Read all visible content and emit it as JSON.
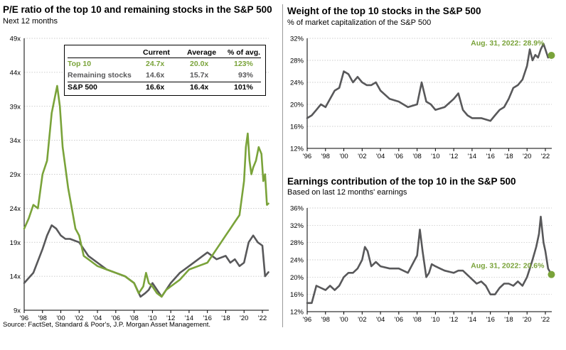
{
  "source": "Source: FactSet, Standard & Poor's, J.P. Morgan Asset Management.",
  "colors": {
    "green": "#7aa33a",
    "gray": "#58585a",
    "grid": "#bdbdbd",
    "axis": "#000000"
  },
  "chart_data": [
    {
      "type": "line",
      "title": "P/E ratio of the top 10 and remaining stocks in the S&P 500",
      "subtitle": "Next 12 months",
      "ylim": [
        9,
        49
      ],
      "yticks": [
        9,
        14,
        19,
        24,
        29,
        34,
        39,
        44,
        49
      ],
      "ytick_labels": [
        "9x",
        "14x",
        "19x",
        "24x",
        "29x",
        "34x",
        "39x",
        "44x",
        "49x"
      ],
      "xlim": [
        1996,
        2022.7
      ],
      "xticks": [
        1996,
        1998,
        2000,
        2002,
        2004,
        2006,
        2008,
        2010,
        2012,
        2014,
        2016,
        2018,
        2020,
        2022
      ],
      "xtick_labels": [
        "'96",
        "'98",
        "'00",
        "'02",
        "'04",
        "'06",
        "'08",
        "'10",
        "'12",
        "'14",
        "'16",
        "'18",
        "'20",
        "'22"
      ],
      "series": [
        {
          "name": "Top 10",
          "color": "#7aa33a",
          "x": [
            1996,
            1996.5,
            1997,
            1997.5,
            1998,
            1998.5,
            1999,
            1999.3,
            1999.6,
            1999.9,
            2000.2,
            2000.5,
            2000.8,
            2001.2,
            2001.6,
            2002,
            2002.5,
            2003,
            2003.5,
            2004,
            2005,
            2006,
            2007,
            2007.5,
            2008,
            2008.5,
            2009,
            2009.3,
            2009.6,
            2010,
            2010.5,
            2011,
            2011.5,
            2012,
            2013,
            2014,
            2015,
            2016,
            2017,
            2017.5,
            2018,
            2018.5,
            2019,
            2019.5,
            2020,
            2020.2,
            2020.4,
            2020.6,
            2020.8,
            2021,
            2021.3,
            2021.6,
            2021.9,
            2022.1,
            2022.3,
            2022.5,
            2022.66
          ],
          "y": [
            21,
            22.5,
            24.5,
            24,
            29,
            31,
            38,
            40,
            42,
            39,
            33,
            30,
            27,
            24,
            21,
            20,
            17,
            16.5,
            16,
            15.5,
            15,
            14.5,
            14,
            13.5,
            13,
            11.5,
            12.5,
            14.5,
            13,
            12.5,
            11.5,
            11,
            12,
            12.5,
            13.5,
            15,
            15.5,
            16,
            18,
            19,
            20,
            21,
            22,
            23,
            28,
            33,
            35,
            31,
            29,
            30,
            31,
            33,
            32,
            28,
            29,
            24.5,
            24.7
          ]
        },
        {
          "name": "Remaining stocks",
          "color": "#58585a",
          "x": [
            1996,
            1997,
            1998,
            1998.5,
            1999,
            1999.5,
            2000,
            2000.5,
            2001,
            2002,
            2003,
            2004,
            2005,
            2006,
            2007,
            2008,
            2008.7,
            2009.2,
            2009.6,
            2010,
            2011,
            2012,
            2013,
            2014,
            2015,
            2016,
            2017,
            2018,
            2018.5,
            2019,
            2019.5,
            2020,
            2020.5,
            2021,
            2021.5,
            2022,
            2022.3,
            2022.66
          ],
          "y": [
            13,
            14.5,
            18,
            20,
            21.5,
            21,
            20,
            19.5,
            19.5,
            19,
            17,
            16,
            15,
            14.5,
            14,
            13,
            11,
            11.5,
            12,
            13,
            11,
            13,
            14.5,
            15.5,
            16.5,
            17.5,
            16.5,
            17,
            16,
            16.5,
            15.5,
            16,
            19,
            20,
            19,
            18.5,
            14,
            14.6
          ]
        }
      ],
      "table": {
        "headers": [
          "",
          "Current",
          "Average",
          "% of avg."
        ],
        "rows": [
          {
            "label": "Top 10",
            "current": "24.7x",
            "average": "20.0x",
            "pct": "123%",
            "color": "#7aa33a"
          },
          {
            "label": "Remaining stocks",
            "current": "14.6x",
            "average": "15.7x",
            "pct": "93%",
            "color": "#58585a"
          },
          {
            "label": "S&P 500",
            "current": "16.6x",
            "average": "16.4x",
            "pct": "101%",
            "color": "#000000"
          }
        ]
      }
    },
    {
      "type": "line",
      "title": "Weight of the top 10 stocks in the S&P 500",
      "subtitle": "% of market capitalization of the S&P 500",
      "ylim": [
        12,
        32
      ],
      "yticks": [
        12,
        16,
        20,
        24,
        28,
        32
      ],
      "ytick_labels": [
        "12%",
        "16%",
        "20%",
        "24%",
        "28%",
        "32%"
      ],
      "xlim": [
        1996,
        2022.7
      ],
      "xticks": [
        1996,
        1998,
        2000,
        2002,
        2004,
        2006,
        2008,
        2010,
        2012,
        2014,
        2016,
        2018,
        2020,
        2022
      ],
      "xtick_labels": [
        "'96",
        "'98",
        "'00",
        "'02",
        "'04",
        "'06",
        "'08",
        "'10",
        "'12",
        "'14",
        "'16",
        "'18",
        "'20",
        "'22"
      ],
      "annotation": "Aug. 31, 2022: 28.9%",
      "endpoint": {
        "x": 2022.66,
        "y": 28.9
      },
      "series": [
        {
          "name": "Top 10 weight",
          "color": "#58585a",
          "x": [
            1996,
            1996.5,
            1997,
            1997.5,
            1998,
            1998.5,
            1999,
            1999.5,
            2000,
            2000.5,
            2001,
            2001.5,
            2002,
            2002.5,
            2003,
            2003.5,
            2004,
            2005,
            2006,
            2007,
            2008,
            2008.5,
            2009,
            2009.5,
            2010,
            2011,
            2012,
            2012.5,
            2013,
            2013.5,
            2014,
            2015,
            2016,
            2016.5,
            2017,
            2017.5,
            2018,
            2018.5,
            2019,
            2019.5,
            2020,
            2020.3,
            2020.6,
            2020.9,
            2021.2,
            2021.5,
            2021.8,
            2022,
            2022.3,
            2022.66
          ],
          "y": [
            17.5,
            18,
            19,
            20,
            19.5,
            21,
            22.5,
            23,
            26,
            25.5,
            24,
            25,
            24,
            23.5,
            23.5,
            24,
            22.5,
            21,
            20.5,
            19.5,
            20,
            24,
            20.5,
            20,
            19,
            19.5,
            21,
            22,
            19,
            18,
            17.5,
            17.5,
            17,
            18,
            19,
            19.5,
            21,
            23,
            23.5,
            24.5,
            27,
            30,
            28,
            29,
            28.5,
            30,
            31,
            30,
            28.5,
            28.9
          ]
        }
      ]
    },
    {
      "type": "line",
      "title": "Earnings contribution of the top 10 in the S&P 500",
      "subtitle": "Based on last 12 months' earnings",
      "ylim": [
        12,
        36
      ],
      "yticks": [
        12,
        16,
        20,
        24,
        28,
        32,
        36
      ],
      "ytick_labels": [
        "12%",
        "16%",
        "20%",
        "24%",
        "28%",
        "32%",
        "36%"
      ],
      "xlim": [
        1996,
        2022.7
      ],
      "xticks": [
        1996,
        1998,
        2000,
        2002,
        2004,
        2006,
        2008,
        2010,
        2012,
        2014,
        2016,
        2018,
        2020,
        2022
      ],
      "xtick_labels": [
        "'96",
        "'98",
        "'00",
        "'02",
        "'04",
        "'06",
        "'08",
        "'10",
        "'12",
        "'14",
        "'16",
        "'18",
        "'20",
        "'22"
      ],
      "annotation": "Aug. 31, 2022: 20.6%",
      "endpoint": {
        "x": 2022.66,
        "y": 20.6
      },
      "series": [
        {
          "name": "Top 10 earnings contribution",
          "color": "#58585a",
          "x": [
            1996,
            1996.5,
            1997,
            1997.5,
            1998,
            1998.5,
            1999,
            1999.5,
            2000,
            2000.5,
            2001,
            2001.5,
            2002,
            2002.3,
            2002.6,
            2003,
            2003.5,
            2004,
            2005,
            2006,
            2007,
            2008,
            2008.3,
            2008.6,
            2009,
            2009.3,
            2009.6,
            2010,
            2010.5,
            2011,
            2012,
            2012.5,
            2013,
            2014,
            2014.5,
            2015,
            2015.5,
            2016,
            2016.5,
            2017,
            2017.5,
            2018,
            2018.5,
            2019,
            2019.5,
            2020,
            2020.3,
            2020.6,
            2021,
            2021.3,
            2021.5,
            2021.8,
            2022,
            2022.3,
            2022.66
          ],
          "y": [
            14,
            14,
            18,
            17.5,
            17,
            18,
            17,
            18,
            20,
            21,
            21,
            22,
            24,
            27,
            26,
            22.5,
            23.5,
            22.5,
            22,
            22,
            21,
            25,
            31,
            26,
            20,
            21,
            23,
            22.5,
            22,
            21.5,
            21,
            21.5,
            21.5,
            19.5,
            18.5,
            19,
            18,
            16,
            16,
            17.5,
            18.5,
            18.5,
            18,
            19,
            18,
            20,
            22,
            24,
            27,
            30,
            34,
            28,
            26,
            22,
            20.6
          ]
        }
      ]
    }
  ]
}
